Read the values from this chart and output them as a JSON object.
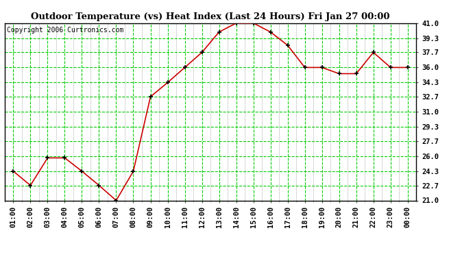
{
  "title": "Outdoor Temperature (vs) Heat Index (Last 24 Hours) Fri Jan 27 00:00",
  "copyright": "Copyright 2006 Curtronics.com",
  "x_labels": [
    "01:00",
    "02:00",
    "03:00",
    "04:00",
    "05:00",
    "06:00",
    "07:00",
    "08:00",
    "09:00",
    "10:00",
    "11:00",
    "12:00",
    "13:00",
    "14:00",
    "15:00",
    "16:00",
    "17:00",
    "18:00",
    "19:00",
    "20:00",
    "21:00",
    "22:00",
    "23:00",
    "00:00"
  ],
  "y_values": [
    24.3,
    22.7,
    25.8,
    25.8,
    24.3,
    22.7,
    21.0,
    24.3,
    32.7,
    34.3,
    36.0,
    37.7,
    40.0,
    41.0,
    41.0,
    40.0,
    38.5,
    36.0,
    36.0,
    35.3,
    35.3,
    37.7,
    36.0,
    36.0
  ],
  "line_color": "#cc0000",
  "marker_color": "#000000",
  "background_color": "#ffffff",
  "plot_bg_color": "#ffffff",
  "grid_color": "#00cc00",
  "title_fontsize": 9.5,
  "tick_fontsize": 7.5,
  "copyright_fontsize": 7,
  "y_min": 21.0,
  "y_max": 41.0,
  "y_ticks": [
    21.0,
    22.7,
    24.3,
    26.0,
    27.7,
    29.3,
    31.0,
    32.7,
    34.3,
    36.0,
    37.7,
    39.3,
    41.0
  ]
}
